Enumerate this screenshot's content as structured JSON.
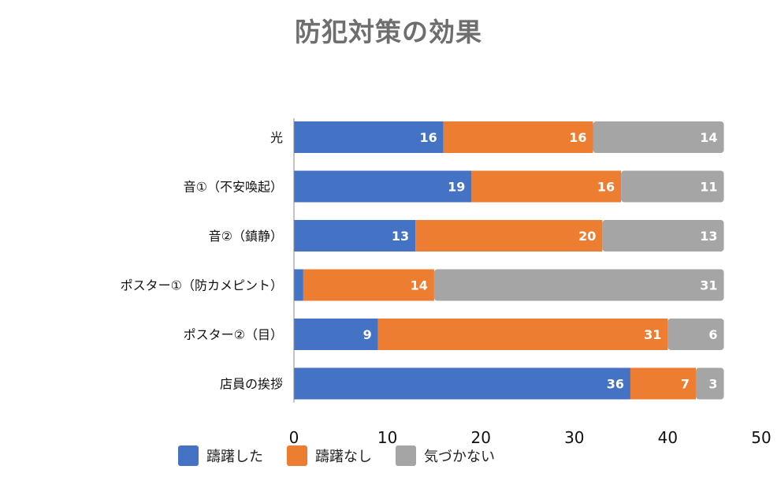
{
  "chart_data": {
    "type": "bar",
    "orientation": "horizontal",
    "stacked": true,
    "title": "防犯対策の効果",
    "categories": [
      "光",
      "音①（不安喚起）",
      "音②（鎮静）",
      "ポスター①（防カメピント）",
      "ポスター②（目）",
      "店員の挨拶"
    ],
    "series": [
      {
        "name": "躊躇した",
        "color": "#4472C4",
        "values": [
          16,
          19,
          13,
          1,
          9,
          36
        ]
      },
      {
        "name": "躊躇なし",
        "color": "#ED7D31",
        "values": [
          16,
          16,
          20,
          14,
          31,
          7
        ]
      },
      {
        "name": "気づかない",
        "color": "#A5A5A5",
        "values": [
          14,
          11,
          13,
          31,
          6,
          3
        ]
      }
    ],
    "xlim": [
      0,
      50
    ],
    "xticks": [
      0,
      10,
      20,
      30,
      40,
      50
    ],
    "xlabel": "",
    "ylabel": "",
    "grid": false,
    "legend_position": "bottom-left"
  }
}
